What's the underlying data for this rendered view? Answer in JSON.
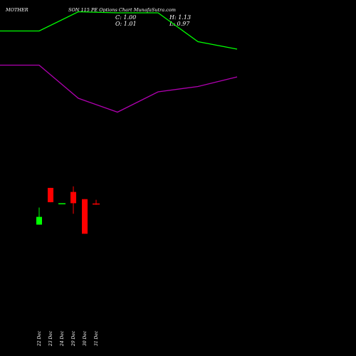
{
  "header": {
    "symbol": "MOTHER",
    "subtitle": "SON 115 PE Options Chart MunafaSutra.com"
  },
  "ohlc": {
    "close": "C: 1.00",
    "open": "O: 1.01",
    "high": "H: 1.13",
    "low": "L: 0.97"
  },
  "colors": {
    "background": "#000000",
    "up": "#00ff00",
    "down": "#ff0000",
    "upper_band": "#00ff00",
    "lower_band": "#b000b0"
  },
  "chart_data": {
    "type": "candlestick",
    "categories": [
      "22 Dec",
      "23 Dec",
      "24 Dec",
      "29 Dec",
      "30 Dec",
      "31 Dec"
    ],
    "series": [
      {
        "open": 0.33,
        "high": 0.88,
        "low": 0.33,
        "close": 0.58
      },
      {
        "open": 1.51,
        "high": 1.51,
        "low": 1.05,
        "close": 1.05
      },
      {
        "open": 1.02,
        "high": 1.02,
        "low": 1.02,
        "close": 1.02
      },
      {
        "open": 1.38,
        "high": 1.56,
        "low": 0.68,
        "close": 1.02
      },
      {
        "open": 1.15,
        "high": 1.15,
        "low": 0.04,
        "close": 0.04
      },
      {
        "open": 1.01,
        "high": 1.13,
        "low": 0.97,
        "close": 1.0
      }
    ],
    "upper_band": [
      10.05,
      10.05,
      10.95,
      10.9,
      10.9,
      9.55,
      9.2
    ],
    "lower_band": [
      8.45,
      8.45,
      6.9,
      6.25,
      7.2,
      7.45,
      7.9
    ],
    "xlabel": "",
    "ylabel": "",
    "ylim": [
      0,
      11.5
    ]
  }
}
